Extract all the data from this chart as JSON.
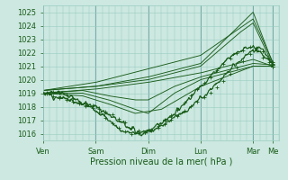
{
  "bg_color": "#cce8e0",
  "grid_color": "#99ccc0",
  "line_color": "#1a5c1a",
  "ylim": [
    1015.5,
    1025.5
  ],
  "yticks": [
    1016,
    1017,
    1018,
    1019,
    1020,
    1021,
    1022,
    1023,
    1024,
    1025
  ],
  "xlabel": "Pression niveau de la mer( hPa )",
  "day_labels": [
    "Ven",
    "Sam",
    "Dim",
    "Lun",
    "Mar",
    "Me"
  ],
  "day_positions": [
    0,
    48,
    96,
    144,
    192,
    210
  ],
  "xlim": [
    0,
    216
  ],
  "xlabel_fontsize": 7,
  "tick_fontsize": 6,
  "lines": {
    "main": {
      "pts_t": [
        0,
        12,
        24,
        36,
        48,
        60,
        72,
        84,
        96,
        108,
        120,
        132,
        144,
        156,
        168,
        180,
        192,
        198,
        204,
        210
      ],
      "pts_v": [
        1019.0,
        1019.1,
        1018.8,
        1018.2,
        1017.8,
        1017.0,
        1016.2,
        1016.0,
        1016.2,
        1016.8,
        1017.5,
        1018.5,
        1019.5,
        1020.5,
        1021.5,
        1022.2,
        1022.5,
        1022.0,
        1021.5,
        1021.2
      ]
    },
    "l2": {
      "pts_t": [
        0,
        48,
        96,
        144,
        192,
        210
      ],
      "pts_v": [
        1019.2,
        1019.5,
        1020.2,
        1021.2,
        1025.0,
        1021.2
      ]
    },
    "l3": {
      "pts_t": [
        0,
        48,
        96,
        144,
        192,
        210
      ],
      "pts_v": [
        1019.2,
        1019.8,
        1020.8,
        1021.8,
        1024.5,
        1021.3
      ]
    },
    "l4": {
      "pts_t": [
        0,
        48,
        96,
        144,
        180,
        192,
        210
      ],
      "pts_v": [
        1019.2,
        1019.5,
        1020.0,
        1021.0,
        1023.5,
        1024.2,
        1021.1
      ]
    },
    "l5": {
      "pts_t": [
        0,
        48,
        96,
        144,
        192,
        210
      ],
      "pts_v": [
        1019.0,
        1019.3,
        1019.8,
        1020.5,
        1021.5,
        1021.0
      ]
    },
    "l6": {
      "pts_t": [
        0,
        36,
        60,
        84,
        96,
        120,
        144,
        192,
        210
      ],
      "pts_v": [
        1019.0,
        1019.2,
        1018.8,
        1018.5,
        1018.5,
        1019.5,
        1020.2,
        1021.2,
        1021.1
      ]
    },
    "l7": {
      "pts_t": [
        0,
        36,
        60,
        84,
        96,
        120,
        144,
        192,
        210
      ],
      "pts_v": [
        1019.0,
        1019.0,
        1018.5,
        1017.8,
        1017.5,
        1019.0,
        1020.0,
        1021.0,
        1021.0
      ]
    },
    "l8": {
      "pts_t": [
        0,
        36,
        60,
        84,
        108,
        144,
        192,
        210
      ],
      "pts_v": [
        1019.0,
        1018.8,
        1018.2,
        1017.5,
        1017.8,
        1019.5,
        1021.0,
        1021.0
      ]
    }
  }
}
